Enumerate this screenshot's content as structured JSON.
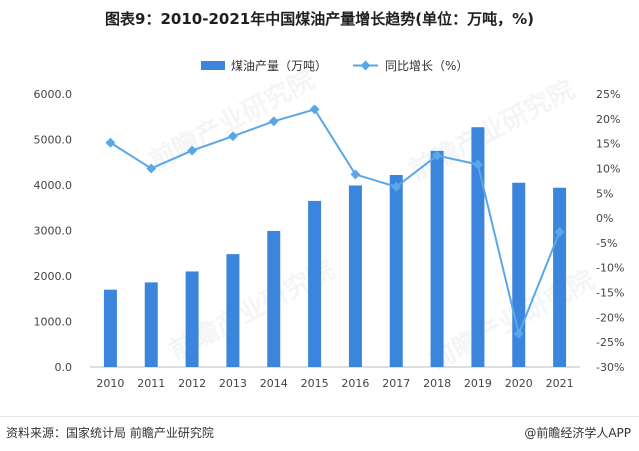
{
  "title": "图表9：2010-2021年中国煤油产量增长趋势(单位：万吨，%)",
  "footer": {
    "source": "资料来源：国家统计局 前瞻产业研究院",
    "brand": "@前瞻经济学人APP"
  },
  "watermark_text": "前瞻产业研究院",
  "colors": {
    "bar": "#3b86dc",
    "line": "#5aa7e8",
    "axis_text": "#444444",
    "grid": "#e0e0e0"
  },
  "chart_data": {
    "type": "bar",
    "categories": [
      "2010",
      "2011",
      "2012",
      "2013",
      "2014",
      "2015",
      "2016",
      "2017",
      "2018",
      "2019",
      "2020",
      "2021"
    ],
    "series": [
      {
        "name": "煤油产量（万吨）",
        "type": "bar",
        "axis": "left",
        "values": [
          1700,
          1860,
          2100,
          2480,
          2990,
          3650,
          3990,
          4220,
          4750,
          5270,
          4050,
          3940
        ]
      },
      {
        "name": "同比增长（%）",
        "type": "line",
        "axis": "right",
        "values": [
          15.2,
          10.0,
          13.6,
          16.5,
          19.5,
          21.9,
          8.8,
          6.3,
          12.6,
          10.8,
          -23.3,
          -2.8
        ]
      }
    ],
    "y_left": {
      "min": 0,
      "max": 6000,
      "ticks": [
        "0.0",
        "1000.0",
        "2000.0",
        "3000.0",
        "4000.0",
        "5000.0",
        "6000.0"
      ]
    },
    "y_right": {
      "min": -30,
      "max": 25,
      "ticks": [
        "-30%",
        "-25%",
        "-20%",
        "-15%",
        "-10%",
        "-5%",
        "0%",
        "5%",
        "10%",
        "15%",
        "20%",
        "25%"
      ]
    },
    "legend_position": "top-center",
    "grid": false
  }
}
